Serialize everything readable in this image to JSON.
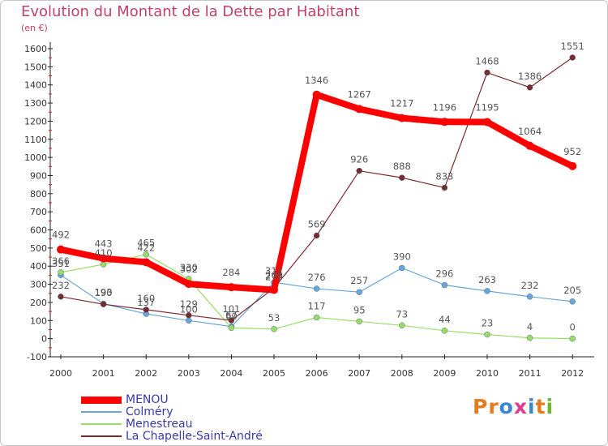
{
  "title": "Evolution du Montant de la Dette par Habitant",
  "subtitle": "(en €)",
  "brand": {
    "text": "Proxiti",
    "letters": [
      "P",
      "r",
      "o",
      "x",
      "i",
      "t",
      "i"
    ],
    "letter_colors": [
      "#e87a1e",
      "#e87a1e",
      "#3a86d0",
      "#e03a8a",
      "#3a86d0",
      "#e87a1e",
      "#6ab82f"
    ]
  },
  "chart_data": {
    "type": "line",
    "title": "Evolution du Montant de la Dette par Habitant",
    "subtitle": "(en €)",
    "xlabel": "",
    "ylabel": "",
    "x": [
      "2000",
      "2001",
      "2002",
      "2003",
      "2004",
      "2005",
      "2006",
      "2007",
      "2008",
      "2009",
      "2010",
      "2011",
      "2012"
    ],
    "ylim": [
      -100,
      1600
    ],
    "yticks": [
      -100,
      0,
      100,
      200,
      300,
      400,
      500,
      600,
      700,
      800,
      900,
      1000,
      1100,
      1200,
      1300,
      1400,
      1500,
      1600
    ],
    "grid": false,
    "legend": "bottom-left",
    "series": [
      {
        "name": "MENOU",
        "color": "#ff0000",
        "values": [
          492,
          443,
          422,
          302,
          284,
          269,
          1346,
          1267,
          1217,
          1196,
          1195,
          1064,
          952
        ],
        "labels": [
          "492",
          "443",
          "422",
          "302",
          "284",
          "269",
          "1346",
          "1267",
          "1217",
          "1196",
          "1195",
          "1064",
          "952"
        ]
      },
      {
        "name": "Colméry",
        "color": "#6aa5d8",
        "values": [
          351,
          193,
          137,
          100,
          67,
          311,
          276,
          257,
          390,
          296,
          263,
          232,
          205
        ],
        "labels": [
          "351",
          "193",
          "137",
          "100",
          "67",
          "311",
          "276",
          "257",
          "390",
          "296",
          "263",
          "232",
          "205"
        ]
      },
      {
        "name": "Menestreau",
        "color": "#99dd66",
        "values": [
          366,
          410,
          465,
          330,
          60,
          53,
          117,
          95,
          73,
          44,
          23,
          4,
          0
        ],
        "labels": [
          "366",
          "410",
          "465",
          "330",
          "60",
          "53",
          "117",
          "95",
          "73",
          "44",
          "23",
          "4",
          "0"
        ]
      },
      {
        "name": "La Chapelle-Saint-André",
        "color": "#7a2a2a",
        "values": [
          232,
          190,
          160,
          129,
          101,
          279,
          569,
          926,
          888,
          833,
          1468,
          1386,
          1551
        ],
        "labels": [
          "232",
          "190",
          "160",
          "129",
          "101",
          "279",
          "569",
          "926",
          "888",
          "833",
          "1468",
          "1386",
          "1551"
        ]
      }
    ]
  }
}
